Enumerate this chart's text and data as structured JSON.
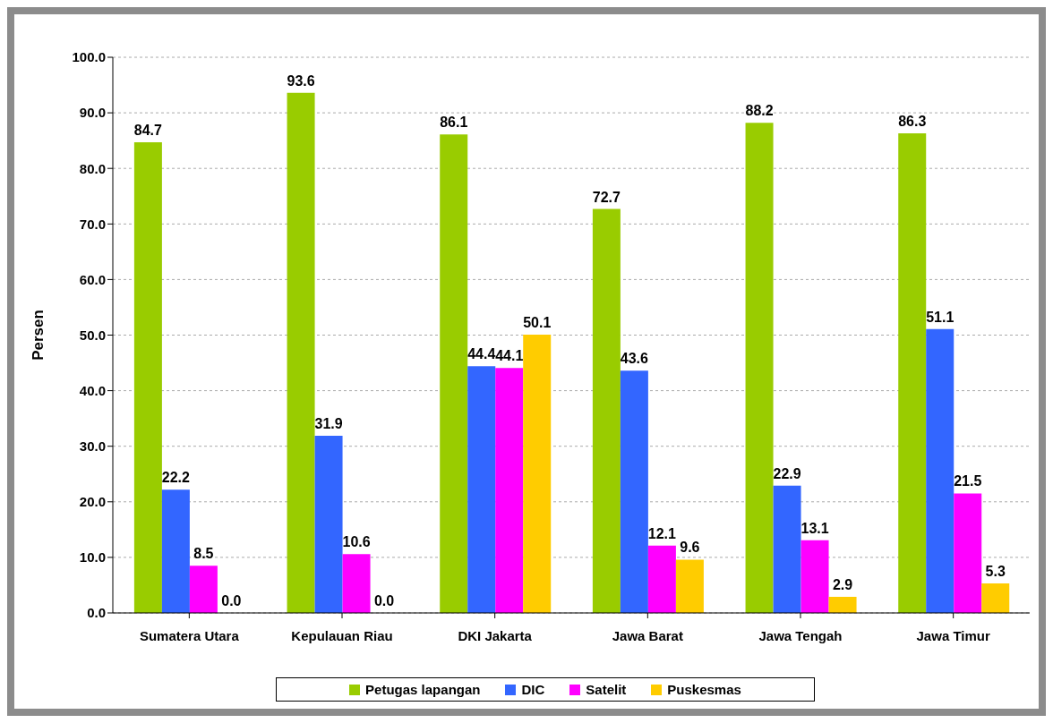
{
  "chart_data": {
    "type": "bar",
    "categories": [
      "Sumatera Utara",
      "Kepulauan Riau",
      "DKI Jakarta",
      "Jawa Barat",
      "Jawa Tengah",
      "Jawa Timur"
    ],
    "ylabel": "Persen",
    "series": [
      {
        "name": "Petugas lapangan",
        "color": "#99cc00",
        "values": [
          84.7,
          93.6,
          86.1,
          72.7,
          88.2,
          86.3
        ],
        "value_labels": [
          "84.7",
          "93.6",
          "86.1",
          "72.7",
          "88.2",
          "86.3"
        ]
      },
      {
        "name": "DIC",
        "color": "#3366ff",
        "values": [
          22.2,
          31.9,
          44.4,
          43.6,
          22.9,
          51.1
        ],
        "value_labels": [
          "22.2",
          "31.9",
          "44.4",
          "43.6",
          "22.9",
          "51.1"
        ]
      },
      {
        "name": "Satelit",
        "color": "#ff00ff",
        "values": [
          8.5,
          10.6,
          44.1,
          12.1,
          13.1,
          21.5
        ],
        "value_labels": [
          "8.5",
          "10.6",
          "44.1",
          "12.1",
          "13.1",
          "21.5"
        ]
      },
      {
        "name": "Puskesmas",
        "color": "#ffcc00",
        "values": [
          0,
          0,
          50.1,
          9.6,
          2.9,
          5.3
        ],
        "value_labels": [
          "0.0",
          "0.0",
          "50.1",
          "9.6",
          "2.9",
          "5.3"
        ]
      }
    ],
    "ylim": [
      0,
      100
    ],
    "yticks": [
      {
        "value": 0,
        "label": "0.0"
      },
      {
        "value": 10,
        "label": "10.0"
      },
      {
        "value": 20,
        "label": "20.0"
      },
      {
        "value": 30,
        "label": "30.0"
      },
      {
        "value": 40,
        "label": "40.0"
      },
      {
        "value": 50,
        "label": "50.0"
      },
      {
        "value": 60,
        "label": "60.0"
      },
      {
        "value": 70,
        "label": "70.0"
      },
      {
        "value": 80,
        "label": "80.0"
      },
      {
        "value": 90,
        "label": "90.0"
      },
      {
        "value": 100,
        "label": "100.0"
      }
    ],
    "grid": "y",
    "legend": "bottom"
  }
}
